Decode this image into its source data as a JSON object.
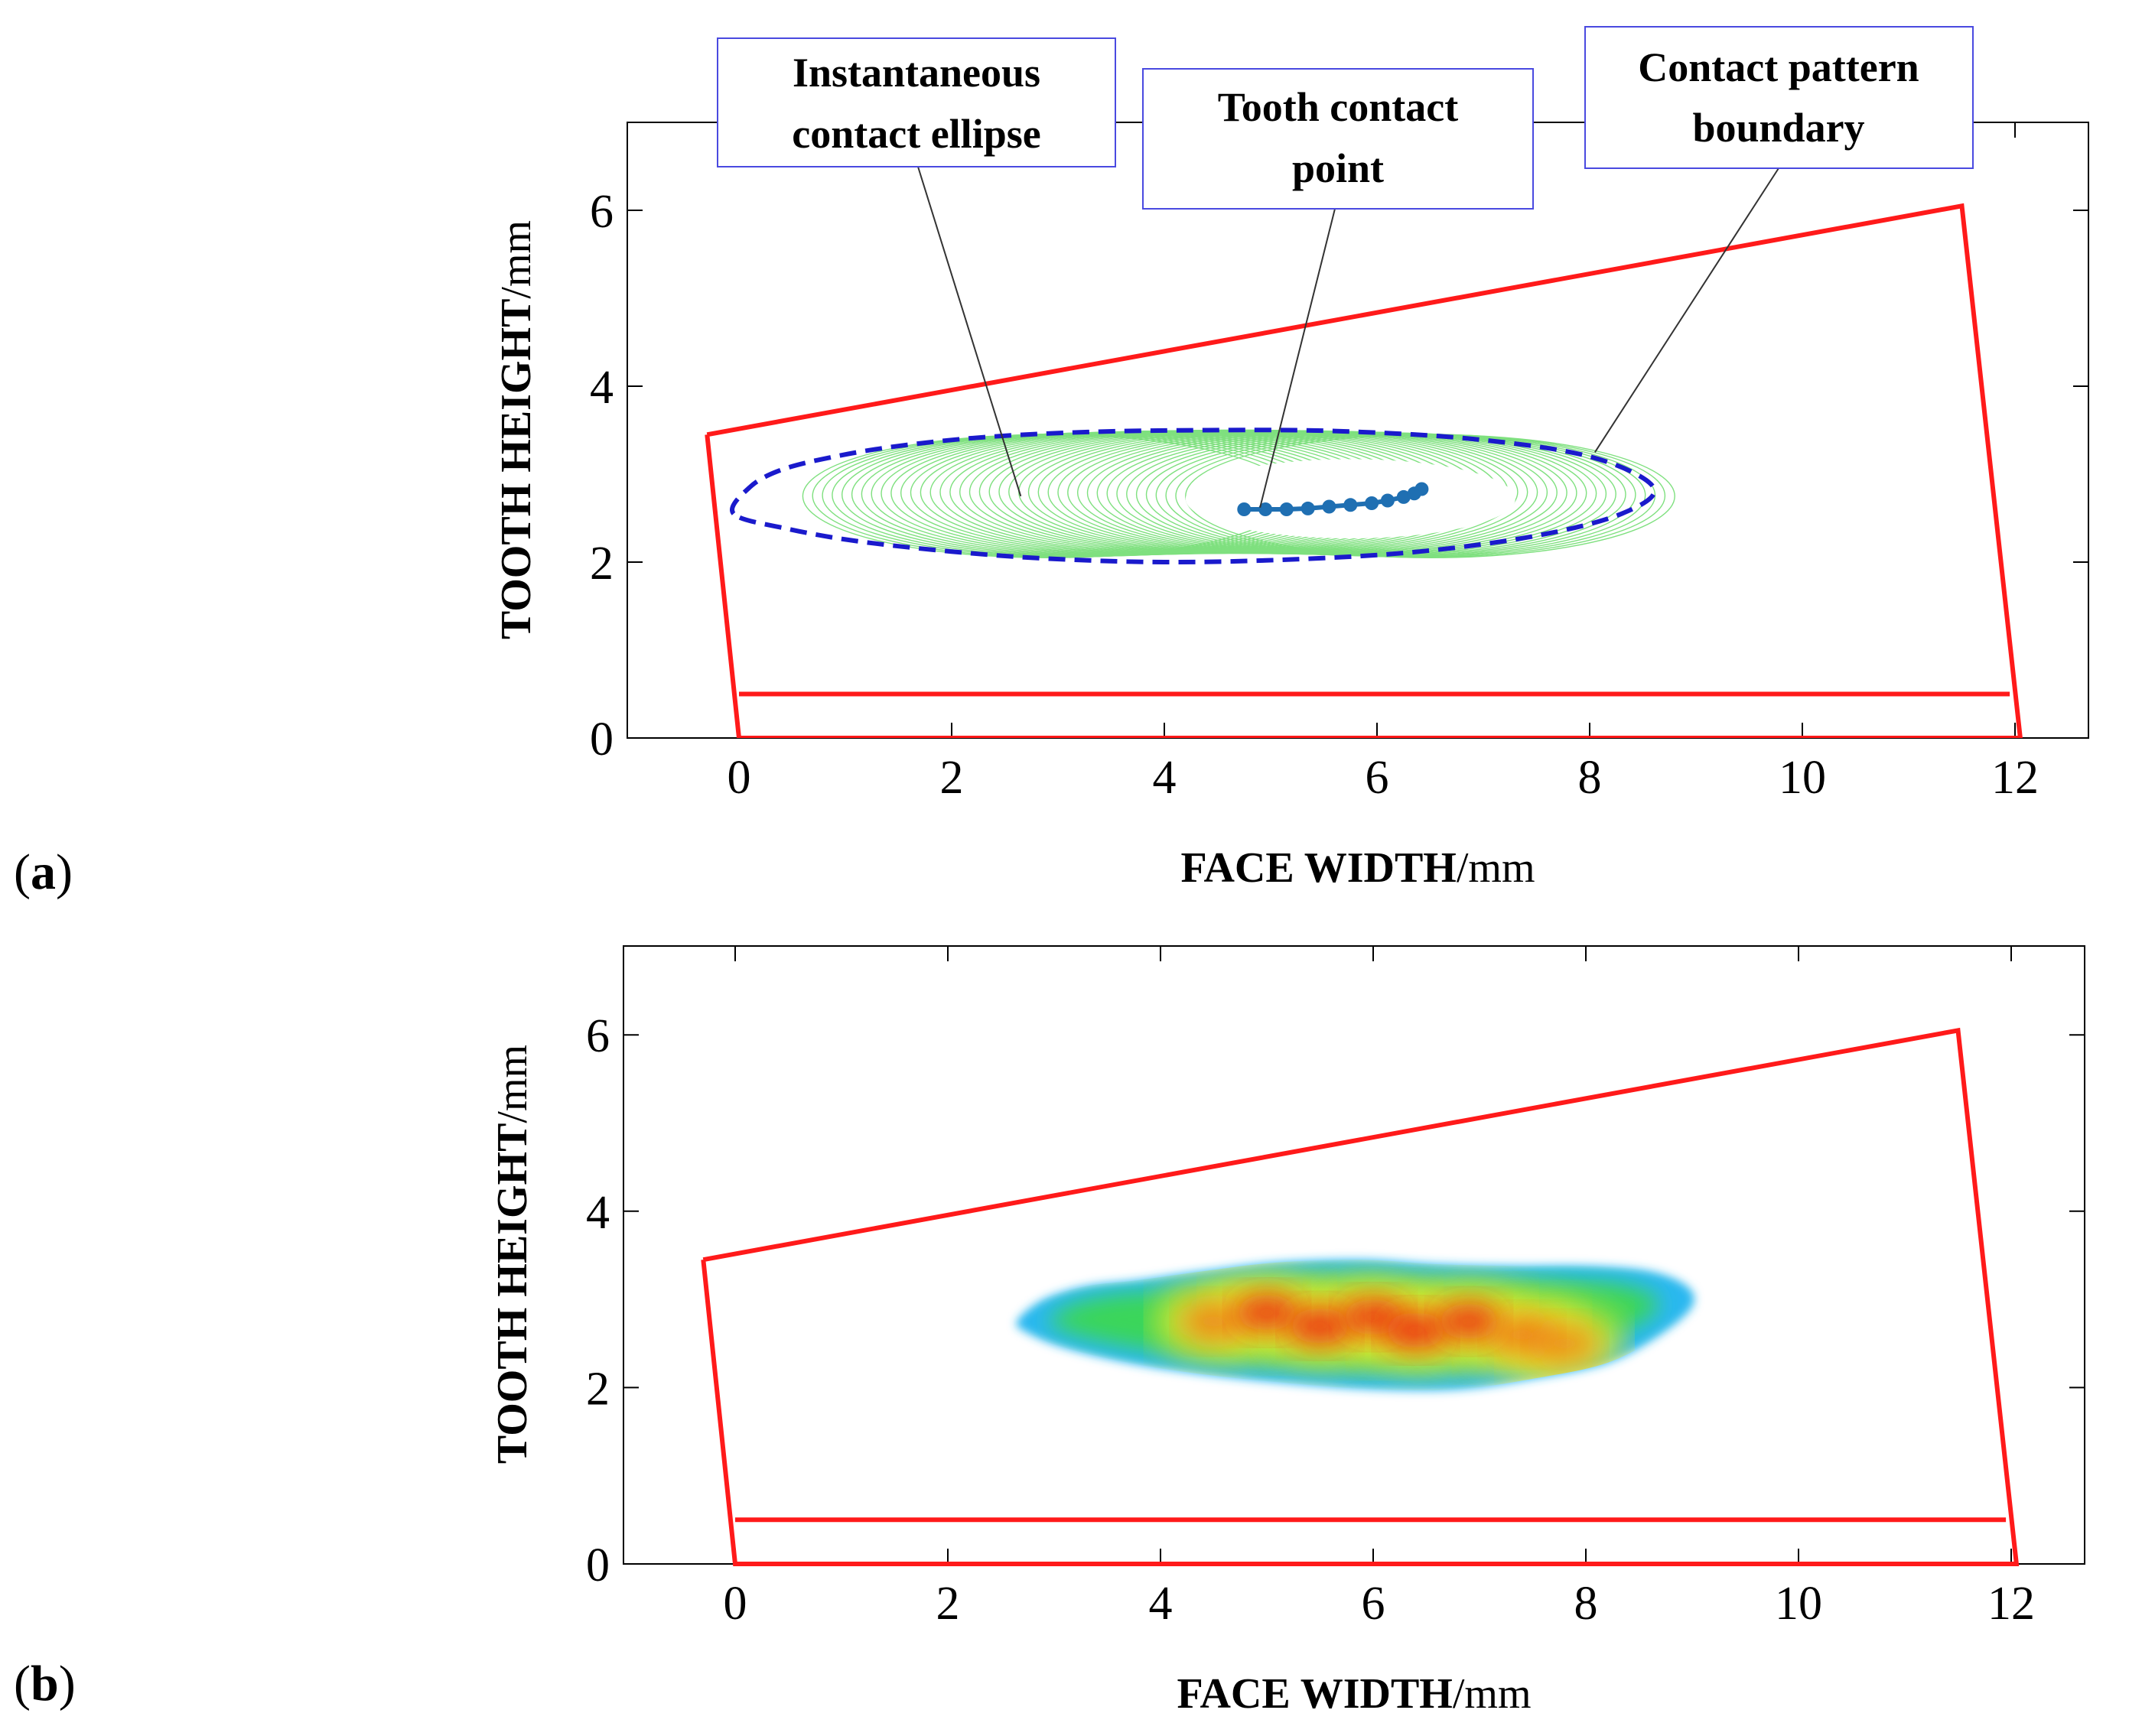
{
  "colors": {
    "gear_outline": "#ff1a1a",
    "boundary": "#1a1acc",
    "ellipse_lines": "#7fe07f",
    "contact_points": "#1f6fb2",
    "annotation_border": "#4a4ae0",
    "axes": "#000000"
  },
  "chart_data": [
    {
      "panel_label": "a",
      "type": "line",
      "title": "",
      "xlabel_bold": "FACE WIDTH",
      "xlabel_unit": "/mm",
      "ylabel_bold": "TOOTH HEIGHT",
      "ylabel_unit": "/mm",
      "xlim": [
        -1,
        12.5
      ],
      "ylim": [
        0,
        7
      ],
      "xticks": [
        "0",
        "2",
        "4",
        "6",
        "8",
        "10",
        "12"
      ],
      "yticks": [
        "0",
        "2",
        "4",
        "6"
      ],
      "xtick_values": [
        0,
        2,
        4,
        6,
        8,
        10,
        12
      ],
      "ytick_values": [
        0,
        2,
        4,
        6
      ],
      "gear_outline": {
        "x": [
          -0.3,
          11.5,
          12.05,
          0.0,
          -0.3
        ],
        "y": [
          3.45,
          6.05,
          0.0,
          0.0,
          3.45
        ]
      },
      "root_line": {
        "x": [
          0.0,
          11.95
        ],
        "y": [
          0.5,
          0.5
        ]
      },
      "contact_pattern_boundary": {
        "x": [
          -0.05,
          0.1,
          0.4,
          0.9,
          1.5,
          2.3,
          3.3,
          4.4,
          5.6,
          6.9,
          8.0,
          8.6,
          8.3,
          7.5,
          6.4,
          5.2,
          4.0,
          2.9,
          2.0,
          1.1,
          0.45,
          -0.05
        ],
        "y": [
          2.55,
          2.85,
          3.05,
          3.2,
          3.32,
          3.42,
          3.48,
          3.5,
          3.49,
          3.4,
          3.2,
          2.85,
          2.55,
          2.3,
          2.12,
          2.03,
          2.0,
          2.04,
          2.12,
          2.24,
          2.38,
          2.55
        ],
        "note_x_offset_from_plot": 2.7
      },
      "instantaneous_contact_ellipses": {
        "center_x_start": 2.9,
        "center_x_end": 6.5,
        "count": 40,
        "semi_major_mm": 2.3,
        "semi_minor_mm": 0.7,
        "center_y": 2.75
      },
      "tooth_contact_points": {
        "x": [
          4.75,
          4.95,
          5.15,
          5.35,
          5.55,
          5.75,
          5.95,
          6.1,
          6.25,
          6.35,
          6.42
        ],
        "y": [
          2.6,
          2.6,
          2.6,
          2.61,
          2.63,
          2.65,
          2.67,
          2.7,
          2.74,
          2.78,
          2.83
        ]
      },
      "annotations": [
        {
          "lines": [
            "Instantaneous",
            "contact ellipse"
          ],
          "target_x": 2.65,
          "target_y": 2.75
        },
        {
          "lines": [
            "Tooth contact",
            "point"
          ],
          "target_x": 4.9,
          "target_y": 2.62
        },
        {
          "lines": [
            "Contact pattern",
            "boundary"
          ],
          "target_x": 8.05,
          "target_y": 3.25
        }
      ]
    },
    {
      "panel_label": "b",
      "type": "heatmap",
      "title": "",
      "xlabel_bold": "FACE WIDTH",
      "xlabel_unit": "/mm",
      "ylabel_bold": "TOOTH HEIGHT",
      "ylabel_unit": "/mm",
      "xlim": [
        -1,
        12.5
      ],
      "ylim": [
        0,
        7
      ],
      "xticks": [
        "0",
        "2",
        "4",
        "6",
        "8",
        "10",
        "12"
      ],
      "yticks": [
        "0",
        "2",
        "4",
        "6"
      ],
      "xtick_values": [
        0,
        2,
        4,
        6,
        8,
        10,
        12
      ],
      "ytick_values": [
        0,
        2,
        4,
        6
      ],
      "gear_outline": {
        "x": [
          -0.3,
          11.5,
          12.05,
          0.0,
          -0.3
        ],
        "y": [
          3.45,
          6.05,
          0.0,
          0.0,
          3.45
        ]
      },
      "root_line": {
        "x": [
          0.0,
          11.95
        ],
        "y": [
          0.5,
          0.5
        ]
      },
      "contact_pattern_region": {
        "x": [
          2.65,
          2.9,
          3.3,
          3.8,
          4.4,
          5.1,
          5.9,
          6.6,
          7.3,
          8.0,
          8.6,
          8.95,
          9.0,
          8.7,
          8.2,
          7.5,
          6.8,
          6.0,
          5.2,
          4.4,
          3.7,
          3.1,
          2.75,
          2.65
        ],
        "y": [
          2.75,
          3.0,
          3.15,
          3.22,
          3.32,
          3.42,
          3.45,
          3.4,
          3.38,
          3.38,
          3.32,
          3.15,
          2.92,
          2.6,
          2.28,
          2.1,
          1.98,
          1.98,
          2.05,
          2.15,
          2.28,
          2.45,
          2.62,
          2.75
        ]
      },
      "pressure_hotspots": [
        {
          "x": 4.5,
          "y": 2.75,
          "level": 0.8
        },
        {
          "x": 5.0,
          "y": 2.85,
          "level": 0.95
        },
        {
          "x": 5.5,
          "y": 2.7,
          "level": 1.0
        },
        {
          "x": 6.0,
          "y": 2.8,
          "level": 0.95
        },
        {
          "x": 6.4,
          "y": 2.65,
          "level": 1.0
        },
        {
          "x": 6.9,
          "y": 2.75,
          "level": 0.95
        },
        {
          "x": 7.4,
          "y": 2.6,
          "level": 0.85
        },
        {
          "x": 7.8,
          "y": 2.5,
          "level": 0.7
        }
      ]
    }
  ]
}
